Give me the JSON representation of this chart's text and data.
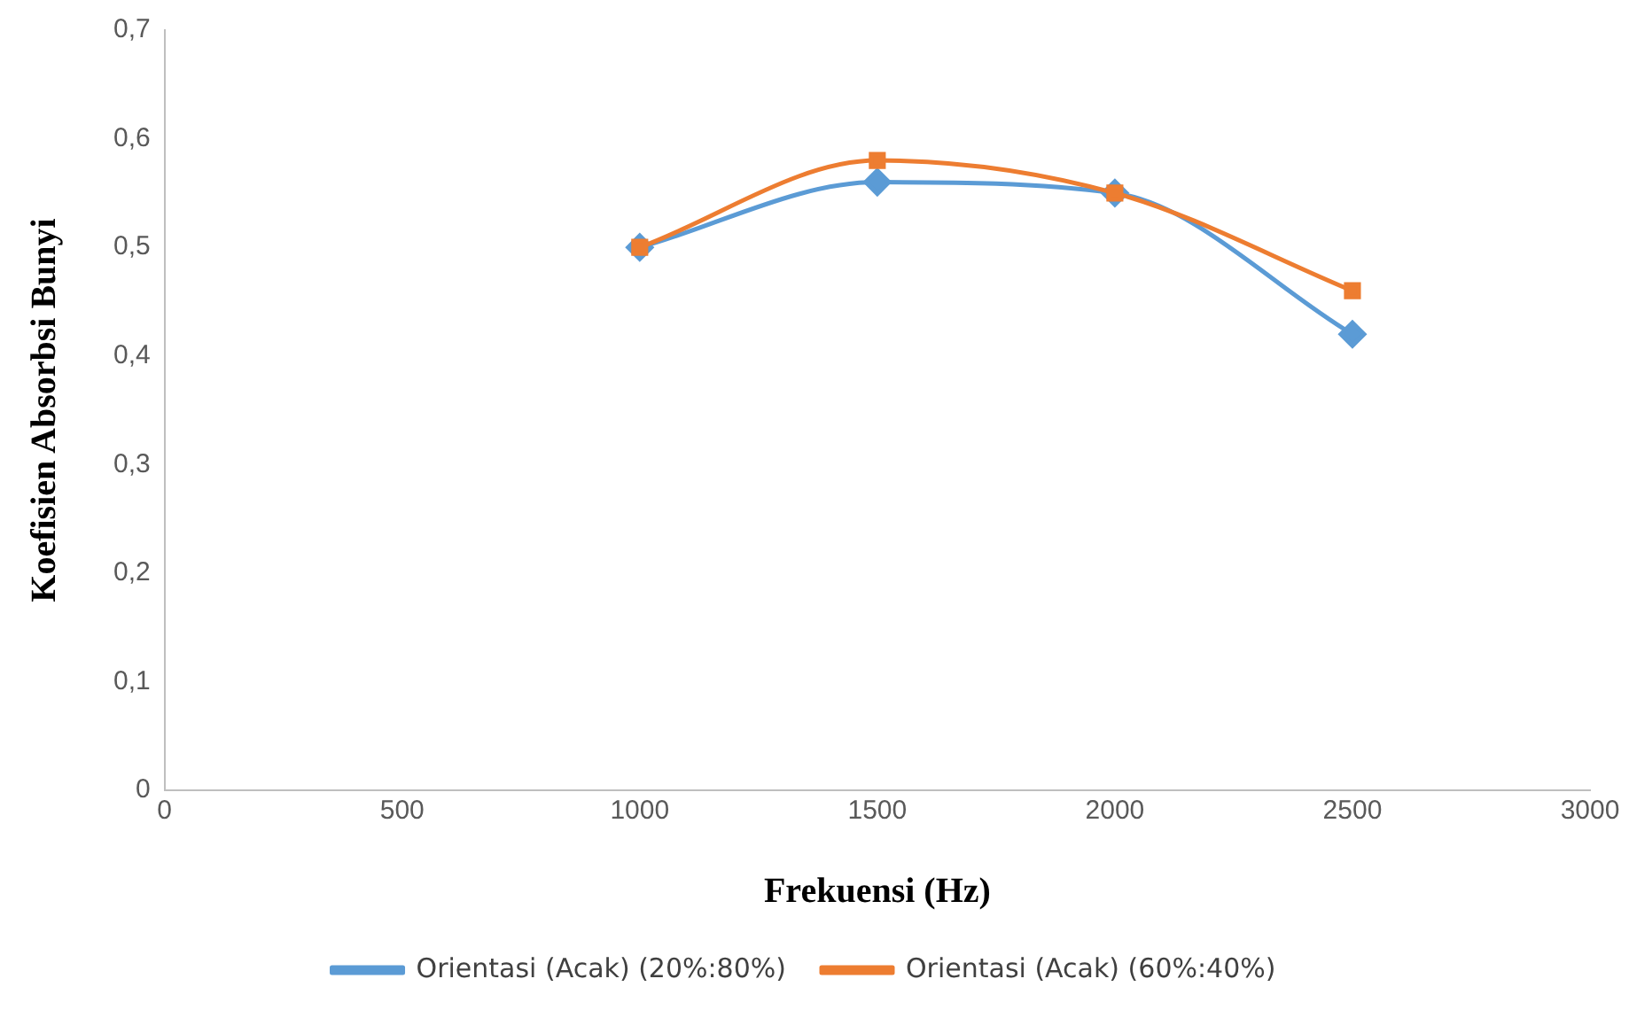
{
  "chart_data": {
    "type": "line",
    "xlabel": "Frekuensi (Hz)",
    "ylabel": "Koefisien Absorbsi Bunyi",
    "x": [
      1000,
      1500,
      2000,
      2500
    ],
    "series": [
      {
        "name": "Orientasi (Acak) (20%:80%)",
        "color": "#5b9bd5",
        "marker": "diamond",
        "values": [
          0.5,
          0.56,
          0.55,
          0.42
        ]
      },
      {
        "name": "Orientasi (Acak) (60%:40%)",
        "color": "#ed7d31",
        "marker": "square",
        "values": [
          0.5,
          0.58,
          0.55,
          0.46
        ]
      }
    ],
    "xlim": [
      0,
      3000
    ],
    "xticks": [
      0,
      500,
      1000,
      1500,
      2000,
      2500,
      3000
    ],
    "ylim": [
      0,
      0.7
    ],
    "yticks": [
      0,
      {
        "value": 0.1,
        "label": "0,1"
      },
      {
        "value": 0.2,
        "label": "0,2"
      },
      {
        "value": 0.3,
        "label": "0,3"
      },
      {
        "value": 0.4,
        "label": "0,4"
      },
      {
        "value": 0.5,
        "label": "0,5"
      },
      {
        "value": 0.6,
        "label": "0,6"
      },
      {
        "value": 0.7,
        "label": "0,7"
      }
    ],
    "grid": false,
    "legend": "bottom",
    "line_style": "solid"
  }
}
